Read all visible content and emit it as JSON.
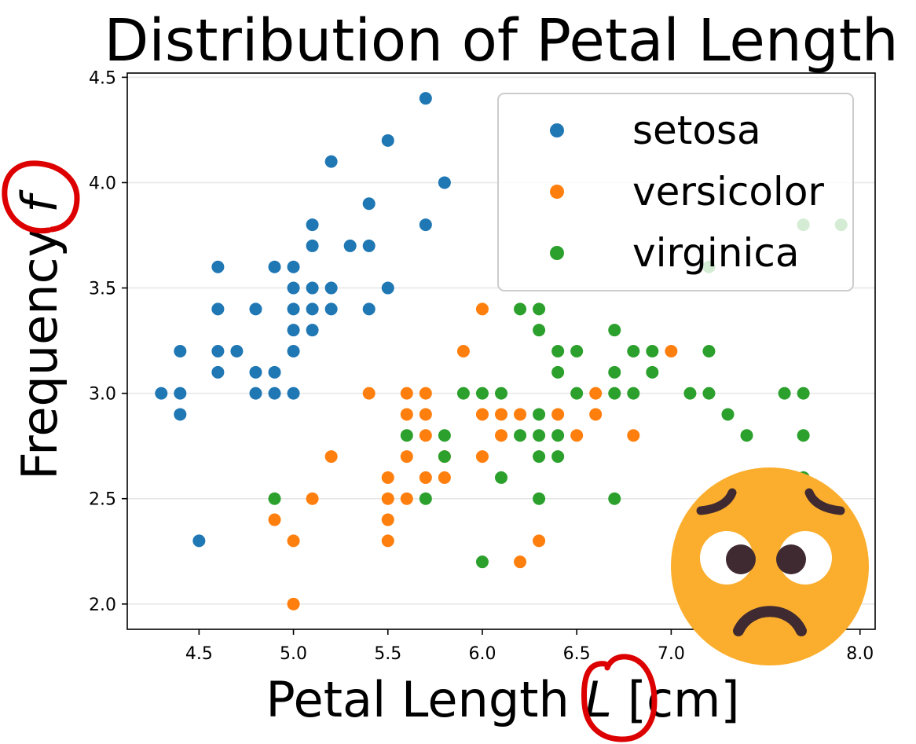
{
  "chart_data": {
    "type": "scatter",
    "title": "Distribution of Petal Length",
    "xlabel_prefix": "Petal Length ",
    "xlabel_var": "L",
    "xlabel_suffix": " [cm]",
    "ylabel_prefix": "Frequency ",
    "ylabel_var": "f",
    "xlim": [
      4.12,
      8.08
    ],
    "ylim": [
      1.88,
      4.52
    ],
    "x_ticks": [
      4.5,
      5.0,
      5.5,
      6.0,
      6.5,
      7.0,
      7.5,
      8.0
    ],
    "x_tick_labels": [
      "4.5",
      "5.0",
      "5.5",
      "6.0",
      "6.5",
      "7.0",
      "7.5",
      "8.0"
    ],
    "y_ticks": [
      2.0,
      2.5,
      3.0,
      3.5,
      4.0,
      4.5
    ],
    "y_tick_labels": [
      "2.0",
      "2.5",
      "3.0",
      "3.5",
      "4.0",
      "4.5"
    ],
    "grid": "horizontal",
    "legend_position": "top-right",
    "series": [
      {
        "name": "setosa",
        "color": "#1f77b4",
        "points": [
          [
            5.7,
            4.4
          ],
          [
            5.5,
            4.2
          ],
          [
            5.2,
            4.1
          ],
          [
            5.8,
            4.0
          ],
          [
            5.4,
            3.9
          ],
          [
            5.1,
            3.8
          ],
          [
            5.7,
            3.8
          ],
          [
            5.1,
            3.7
          ],
          [
            5.3,
            3.7
          ],
          [
            5.4,
            3.7
          ],
          [
            4.6,
            3.6
          ],
          [
            4.9,
            3.6
          ],
          [
            5.0,
            3.6
          ],
          [
            5.0,
            3.5
          ],
          [
            5.1,
            3.5
          ],
          [
            5.2,
            3.5
          ],
          [
            5.5,
            3.5
          ],
          [
            4.6,
            3.4
          ],
          [
            4.8,
            3.4
          ],
          [
            5.0,
            3.4
          ],
          [
            5.1,
            3.4
          ],
          [
            5.2,
            3.4
          ],
          [
            5.4,
            3.4
          ],
          [
            5.0,
            3.3
          ],
          [
            5.1,
            3.3
          ],
          [
            4.4,
            3.2
          ],
          [
            4.6,
            3.2
          ],
          [
            4.7,
            3.2
          ],
          [
            5.0,
            3.2
          ],
          [
            4.6,
            3.1
          ],
          [
            4.8,
            3.1
          ],
          [
            4.9,
            3.1
          ],
          [
            4.3,
            3.0
          ],
          [
            4.4,
            3.0
          ],
          [
            4.8,
            3.0
          ],
          [
            4.9,
            3.0
          ],
          [
            5.0,
            3.0
          ],
          [
            4.4,
            2.9
          ],
          [
            4.5,
            2.3
          ]
        ]
      },
      {
        "name": "versicolor",
        "color": "#ff7f0e",
        "points": [
          [
            6.0,
            3.4
          ],
          [
            5.9,
            3.2
          ],
          [
            7.0,
            3.2
          ],
          [
            6.6,
            3.0
          ],
          [
            5.4,
            3.0
          ],
          [
            5.6,
            3.0
          ],
          [
            5.7,
            3.0
          ],
          [
            5.6,
            2.9
          ],
          [
            5.7,
            2.9
          ],
          [
            6.0,
            2.9
          ],
          [
            6.1,
            2.9
          ],
          [
            6.2,
            2.9
          ],
          [
            6.4,
            2.9
          ],
          [
            6.6,
            2.9
          ],
          [
            5.7,
            2.8
          ],
          [
            6.1,
            2.8
          ],
          [
            6.5,
            2.8
          ],
          [
            6.8,
            2.8
          ],
          [
            5.2,
            2.7
          ],
          [
            5.6,
            2.7
          ],
          [
            5.8,
            2.7
          ],
          [
            6.0,
            2.7
          ],
          [
            5.5,
            2.6
          ],
          [
            5.7,
            2.6
          ],
          [
            5.8,
            2.6
          ],
          [
            5.1,
            2.5
          ],
          [
            5.5,
            2.5
          ],
          [
            5.6,
            2.5
          ],
          [
            4.9,
            2.4
          ],
          [
            5.5,
            2.4
          ],
          [
            5.0,
            2.3
          ],
          [
            5.5,
            2.3
          ],
          [
            6.3,
            2.3
          ],
          [
            6.2,
            2.2
          ],
          [
            5.0,
            2.0
          ]
        ]
      },
      {
        "name": "virginica",
        "color": "#2ca02c",
        "points": [
          [
            7.7,
            3.8
          ],
          [
            7.9,
            3.8
          ],
          [
            7.2,
            3.6
          ],
          [
            6.2,
            3.4
          ],
          [
            6.3,
            3.4
          ],
          [
            6.3,
            3.3
          ],
          [
            6.7,
            3.3
          ],
          [
            6.4,
            3.2
          ],
          [
            6.5,
            3.2
          ],
          [
            6.8,
            3.2
          ],
          [
            6.9,
            3.2
          ],
          [
            7.2,
            3.2
          ],
          [
            6.4,
            3.1
          ],
          [
            6.7,
            3.1
          ],
          [
            6.9,
            3.1
          ],
          [
            5.9,
            3.0
          ],
          [
            6.0,
            3.0
          ],
          [
            6.1,
            3.0
          ],
          [
            6.5,
            3.0
          ],
          [
            6.7,
            3.0
          ],
          [
            6.8,
            3.0
          ],
          [
            7.1,
            3.0
          ],
          [
            7.2,
            3.0
          ],
          [
            7.6,
            3.0
          ],
          [
            7.7,
            3.0
          ],
          [
            6.3,
            2.9
          ],
          [
            7.3,
            2.9
          ],
          [
            5.6,
            2.8
          ],
          [
            5.8,
            2.8
          ],
          [
            6.2,
            2.8
          ],
          [
            6.3,
            2.8
          ],
          [
            6.4,
            2.8
          ],
          [
            7.4,
            2.8
          ],
          [
            7.7,
            2.8
          ],
          [
            5.8,
            2.7
          ],
          [
            6.3,
            2.7
          ],
          [
            6.4,
            2.7
          ],
          [
            6.1,
            2.6
          ],
          [
            7.7,
            2.6
          ],
          [
            4.9,
            2.5
          ],
          [
            5.7,
            2.5
          ],
          [
            6.3,
            2.5
          ],
          [
            6.7,
            2.5
          ],
          [
            6.0,
            2.2
          ]
        ]
      }
    ]
  },
  "overlay": {
    "emoji_icon": "worried-face-icon",
    "annotation_color": "#dd0000",
    "face_color": "#fbae2d",
    "feature_color": "#402a32"
  }
}
